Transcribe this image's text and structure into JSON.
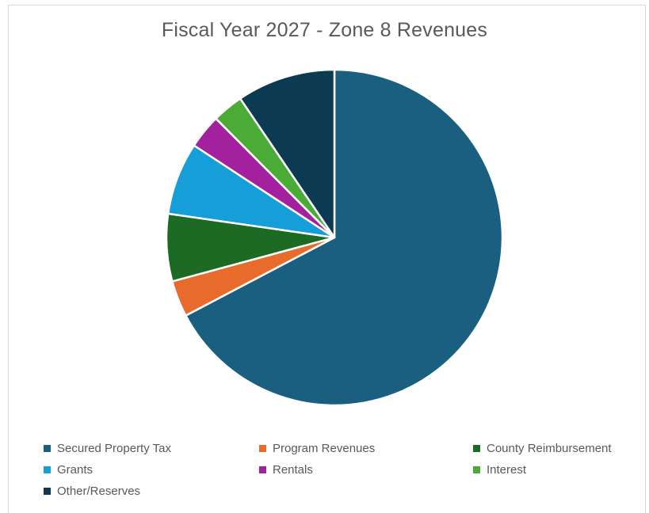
{
  "chart_data": {
    "type": "pie",
    "title": "Fiscal Year 2027 - Zone 8 Revenues",
    "legend_position": "bottom",
    "slices": [
      {
        "label": "Secured Property Tax",
        "value": 67.5,
        "color": "#1a5e80"
      },
      {
        "label": "Program Revenues",
        "value": 3.5,
        "color": "#e86b2b"
      },
      {
        "label": "County Reimbursement",
        "value": 6.5,
        "color": "#1c6a24"
      },
      {
        "label": "Grants",
        "value": 7.0,
        "color": "#159ed8"
      },
      {
        "label": "Rentals",
        "value": 3.3,
        "color": "#a3219e"
      },
      {
        "label": "Interest",
        "value": 3.0,
        "color": "#4aab36"
      },
      {
        "label": "Other/Reserves",
        "value": 9.5,
        "color": "#0c3a52"
      }
    ]
  }
}
